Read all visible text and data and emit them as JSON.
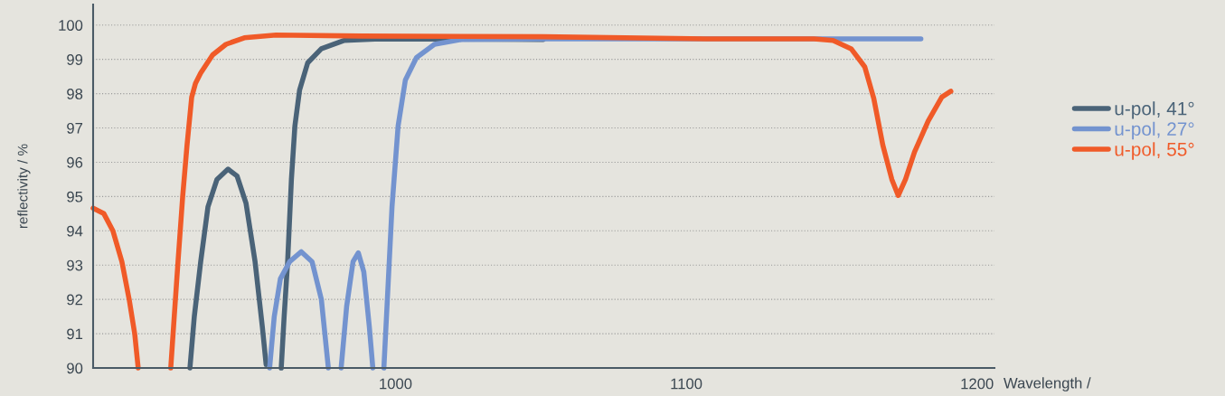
{
  "chart_data": {
    "type": "line",
    "xlabel": "Wavelength /",
    "ylabel": "reflectivity / %",
    "xlim": [
      896,
      1206
    ],
    "ylim": [
      90,
      100.6
    ],
    "xticks": [
      1000,
      1100,
      1200
    ],
    "yticks": [
      90,
      91,
      92,
      93,
      94,
      95,
      96,
      97,
      98,
      99,
      100
    ],
    "grid": "y",
    "legend": "top right",
    "line_style": "solid",
    "marker": "none",
    "series": [
      {
        "name": "u-pol, 41°",
        "color": "#4a6378",
        "x": [
          929.3,
          930.8,
          933,
          935.5,
          938.6,
          942.4,
          945.5,
          948.6,
          951.7,
          954.2,
          955.5,
          958,
          960.7,
          961.7,
          962.9,
          964.2,
          965.4,
          967,
          969.8,
          974.5,
          982.2,
          994.7,
          1050.8
        ],
        "values": [
          90,
          91.5,
          93.1,
          94.7,
          95.5,
          95.8,
          95.6,
          94.8,
          93.1,
          91.2,
          90.1,
          null,
          90,
          91.5,
          93.1,
          95.5,
          97.06,
          98.1,
          98.9,
          99.31,
          99.55,
          99.6,
          99.58
        ]
      },
      {
        "name": "u-pol, 27°",
        "color": "#7393cf",
        "x": [
          956.7,
          958.3,
          960.4,
          963.6,
          967.6,
          971.3,
          974.5,
          976.9,
          979,
          981.3,
          983.2,
          985.4,
          987.2,
          989.1,
          991,
          992.2,
          994,
          996,
          997.2,
          998.8,
          1000.9,
          1003.4,
          1007.2,
          1013.4,
          1022.7,
          1050.8,
          1180.7
        ],
        "values": [
          90,
          91.5,
          92.6,
          93.1,
          93.39,
          93.1,
          92.0,
          90,
          null,
          90,
          91.8,
          93.1,
          93.36,
          92.8,
          91.2,
          90,
          null,
          90,
          92.0,
          94.7,
          97.06,
          98.4,
          99.05,
          99.44,
          99.58,
          99.6,
          99.6
        ]
      },
      {
        "name": "u-pol, 55°",
        "color": "#f05a28",
        "x": [
          896,
          899.7,
          902.8,
          905.9,
          908.4,
          910.3,
          911.5,
          917,
          922.7,
          923.9,
          925.2,
          926.8,
          928.3,
          929.9,
          931.2,
          933,
          937.1,
          941.7,
          948,
          958.9,
          988.5,
          1050.8,
          1106.9,
          1144,
          1150.5,
          1156.7,
          1161.4,
          1164.5,
          1167.6,
          1170.7,
          1172.9,
          1175.4,
          1178.5,
          1183.2,
          1187.9,
          1191
        ],
        "values": [
          94.66,
          94.5,
          94.0,
          93.1,
          92.0,
          91.0,
          90,
          null,
          90,
          91.5,
          93.1,
          95.0,
          96.5,
          97.9,
          98.3,
          98.6,
          99.13,
          99.44,
          99.63,
          99.71,
          99.68,
          99.66,
          99.6,
          99.6,
          99.55,
          99.31,
          98.78,
          97.86,
          96.5,
          95.5,
          95.03,
          95.5,
          96.3,
          97.2,
          97.9,
          98.07
        ]
      }
    ]
  }
}
